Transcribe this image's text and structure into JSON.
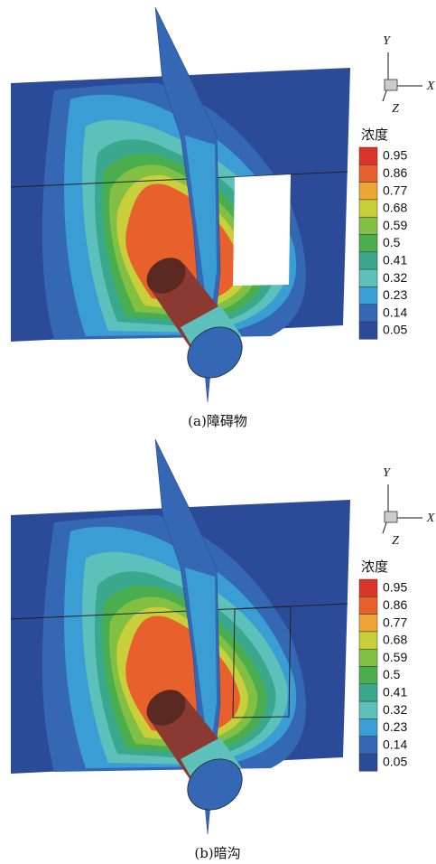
{
  "panels": [
    {
      "caption": "(a)障碍物",
      "colorbar_title": "浓度",
      "axis_labels": [
        "Y",
        "X",
        "Z"
      ],
      "levels": [
        0.95,
        0.86,
        0.77,
        0.68,
        0.59,
        0.5,
        0.41,
        0.32,
        0.23,
        0.14,
        0.05
      ],
      "level_colors": [
        "#d9352a",
        "#e8612d",
        "#eda535",
        "#c9cf3a",
        "#82c043",
        "#4aae4f",
        "#3aa88c",
        "#5ec0bb",
        "#3a9ed5",
        "#3568b4",
        "#2b4a98"
      ],
      "opening": "window"
    },
    {
      "caption": "(b)暗沟",
      "colorbar_title": "浓度",
      "axis_labels": [
        "Y",
        "X",
        "Z"
      ],
      "levels": [
        0.95,
        0.86,
        0.77,
        0.68,
        0.59,
        0.5,
        0.41,
        0.32,
        0.23,
        0.14,
        0.05
      ],
      "level_colors": [
        "#d9352a",
        "#e8612d",
        "#eda535",
        "#c9cf3a",
        "#82c043",
        "#4aae4f",
        "#3aa88c",
        "#5ec0bb",
        "#3a9ed5",
        "#3568b4",
        "#2b4a98"
      ],
      "opening": "trench"
    }
  ]
}
